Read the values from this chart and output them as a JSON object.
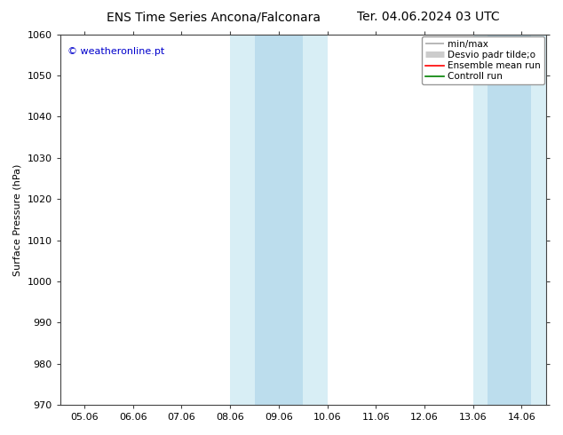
{
  "title_left": "ENS Time Series Ancona/Falconara",
  "title_right": "Ter. 04.06.2024 03 UTC",
  "ylabel": "Surface Pressure (hPa)",
  "ylim": [
    970,
    1060
  ],
  "yticks": [
    970,
    980,
    990,
    1000,
    1010,
    1020,
    1030,
    1040,
    1050,
    1060
  ],
  "x_labels": [
    "05.06",
    "06.06",
    "07.06",
    "08.06",
    "09.06",
    "10.06",
    "11.06",
    "12.06",
    "13.06",
    "14.06"
  ],
  "x_values": [
    0,
    1,
    2,
    3,
    4,
    5,
    6,
    7,
    8,
    9
  ],
  "band1_outer": {
    "xmin": 3.0,
    "xmax": 5.0,
    "color": "#d8eef5"
  },
  "band1_inner": {
    "xmin": 3.5,
    "xmax": 4.5,
    "color": "#bcdded"
  },
  "band2_outer": {
    "xmin": 8.0,
    "xmax": 9.5,
    "color": "#d8eef5"
  },
  "band2_inner": {
    "xmin": 8.3,
    "xmax": 9.2,
    "color": "#bcdded"
  },
  "watermark": "© weatheronline.pt",
  "watermark_color": "#0000cc",
  "background_color": "#ffffff",
  "title_fontsize": 10,
  "label_fontsize": 8,
  "tick_fontsize": 8,
  "legend_fontsize": 7.5,
  "legend_labels": [
    "min/max",
    "Desvio padr tilde;o",
    "Ensemble mean run",
    "Controll run"
  ],
  "legend_colors": [
    "#aaaaaa",
    "#cccccc",
    "red",
    "green"
  ]
}
